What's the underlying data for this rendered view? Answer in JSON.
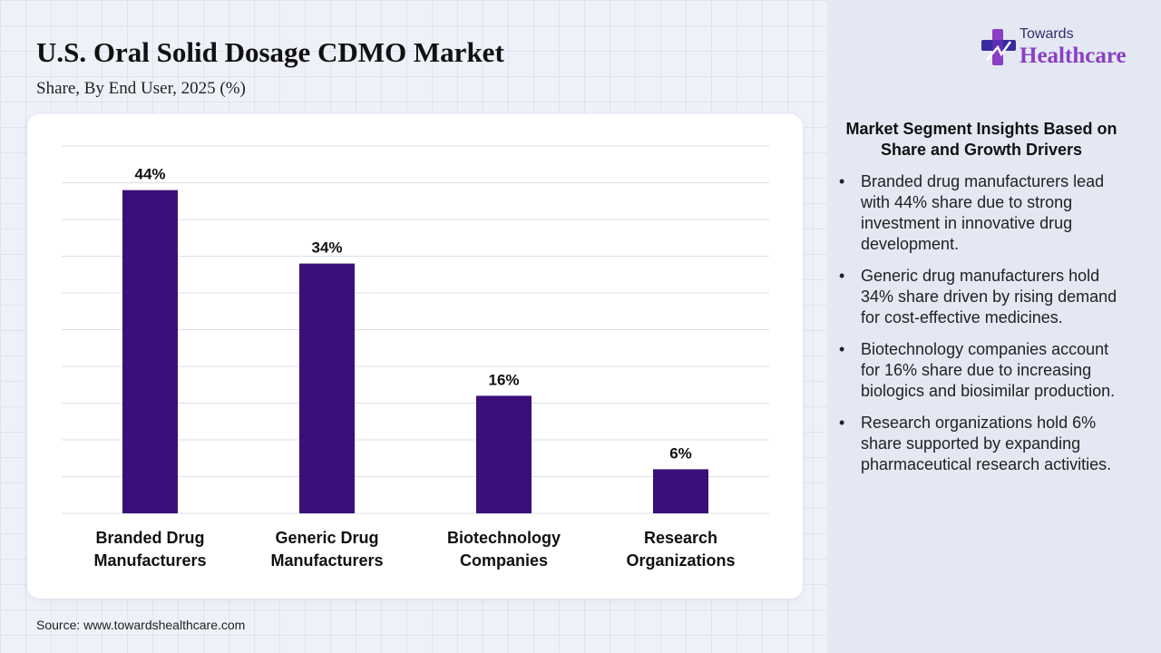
{
  "header": {
    "title": "U.S. Oral Solid Dosage CDMO Market",
    "subtitle": "Share, By End User, 2025 (%)"
  },
  "logo": {
    "line1": "Towards",
    "line2": "Healthcare",
    "icon": "cross-logo-icon"
  },
  "source": "Source: www.towardshealthcare.com",
  "colors": {
    "bar": "#3b0f7a",
    "grid": "#dcdfe6"
  },
  "chart_data": {
    "type": "bar",
    "title": "U.S. Oral Solid Dosage CDMO Market",
    "subtitle": "Share, By End User, 2025 (%)",
    "categories": [
      [
        "Branded Drug",
        "Manufacturers"
      ],
      [
        "Generic Drug",
        "Manufacturers"
      ],
      [
        "Biotechnology",
        "Companies"
      ],
      [
        "Research",
        "Organizations"
      ]
    ],
    "values": [
      44,
      34,
      16,
      6
    ],
    "value_labels": [
      "44%",
      "34%",
      "16%",
      "6%"
    ],
    "ylim": [
      0,
      50
    ],
    "grid": true,
    "legend": "none"
  },
  "insights": {
    "title": "Market Segment Insights Based on Share and Growth Drivers",
    "items": [
      "Branded drug manufacturers lead with 44% share due to strong investment in innovative drug development.",
      "Generic drug manufacturers hold 34% share driven by rising demand for cost-effective medicines.",
      "Biotechnology companies account for 16% share due to increasing biologics and biosimilar production.",
      "Research organizations hold 6% share supported by expanding pharmaceutical research activities."
    ]
  }
}
